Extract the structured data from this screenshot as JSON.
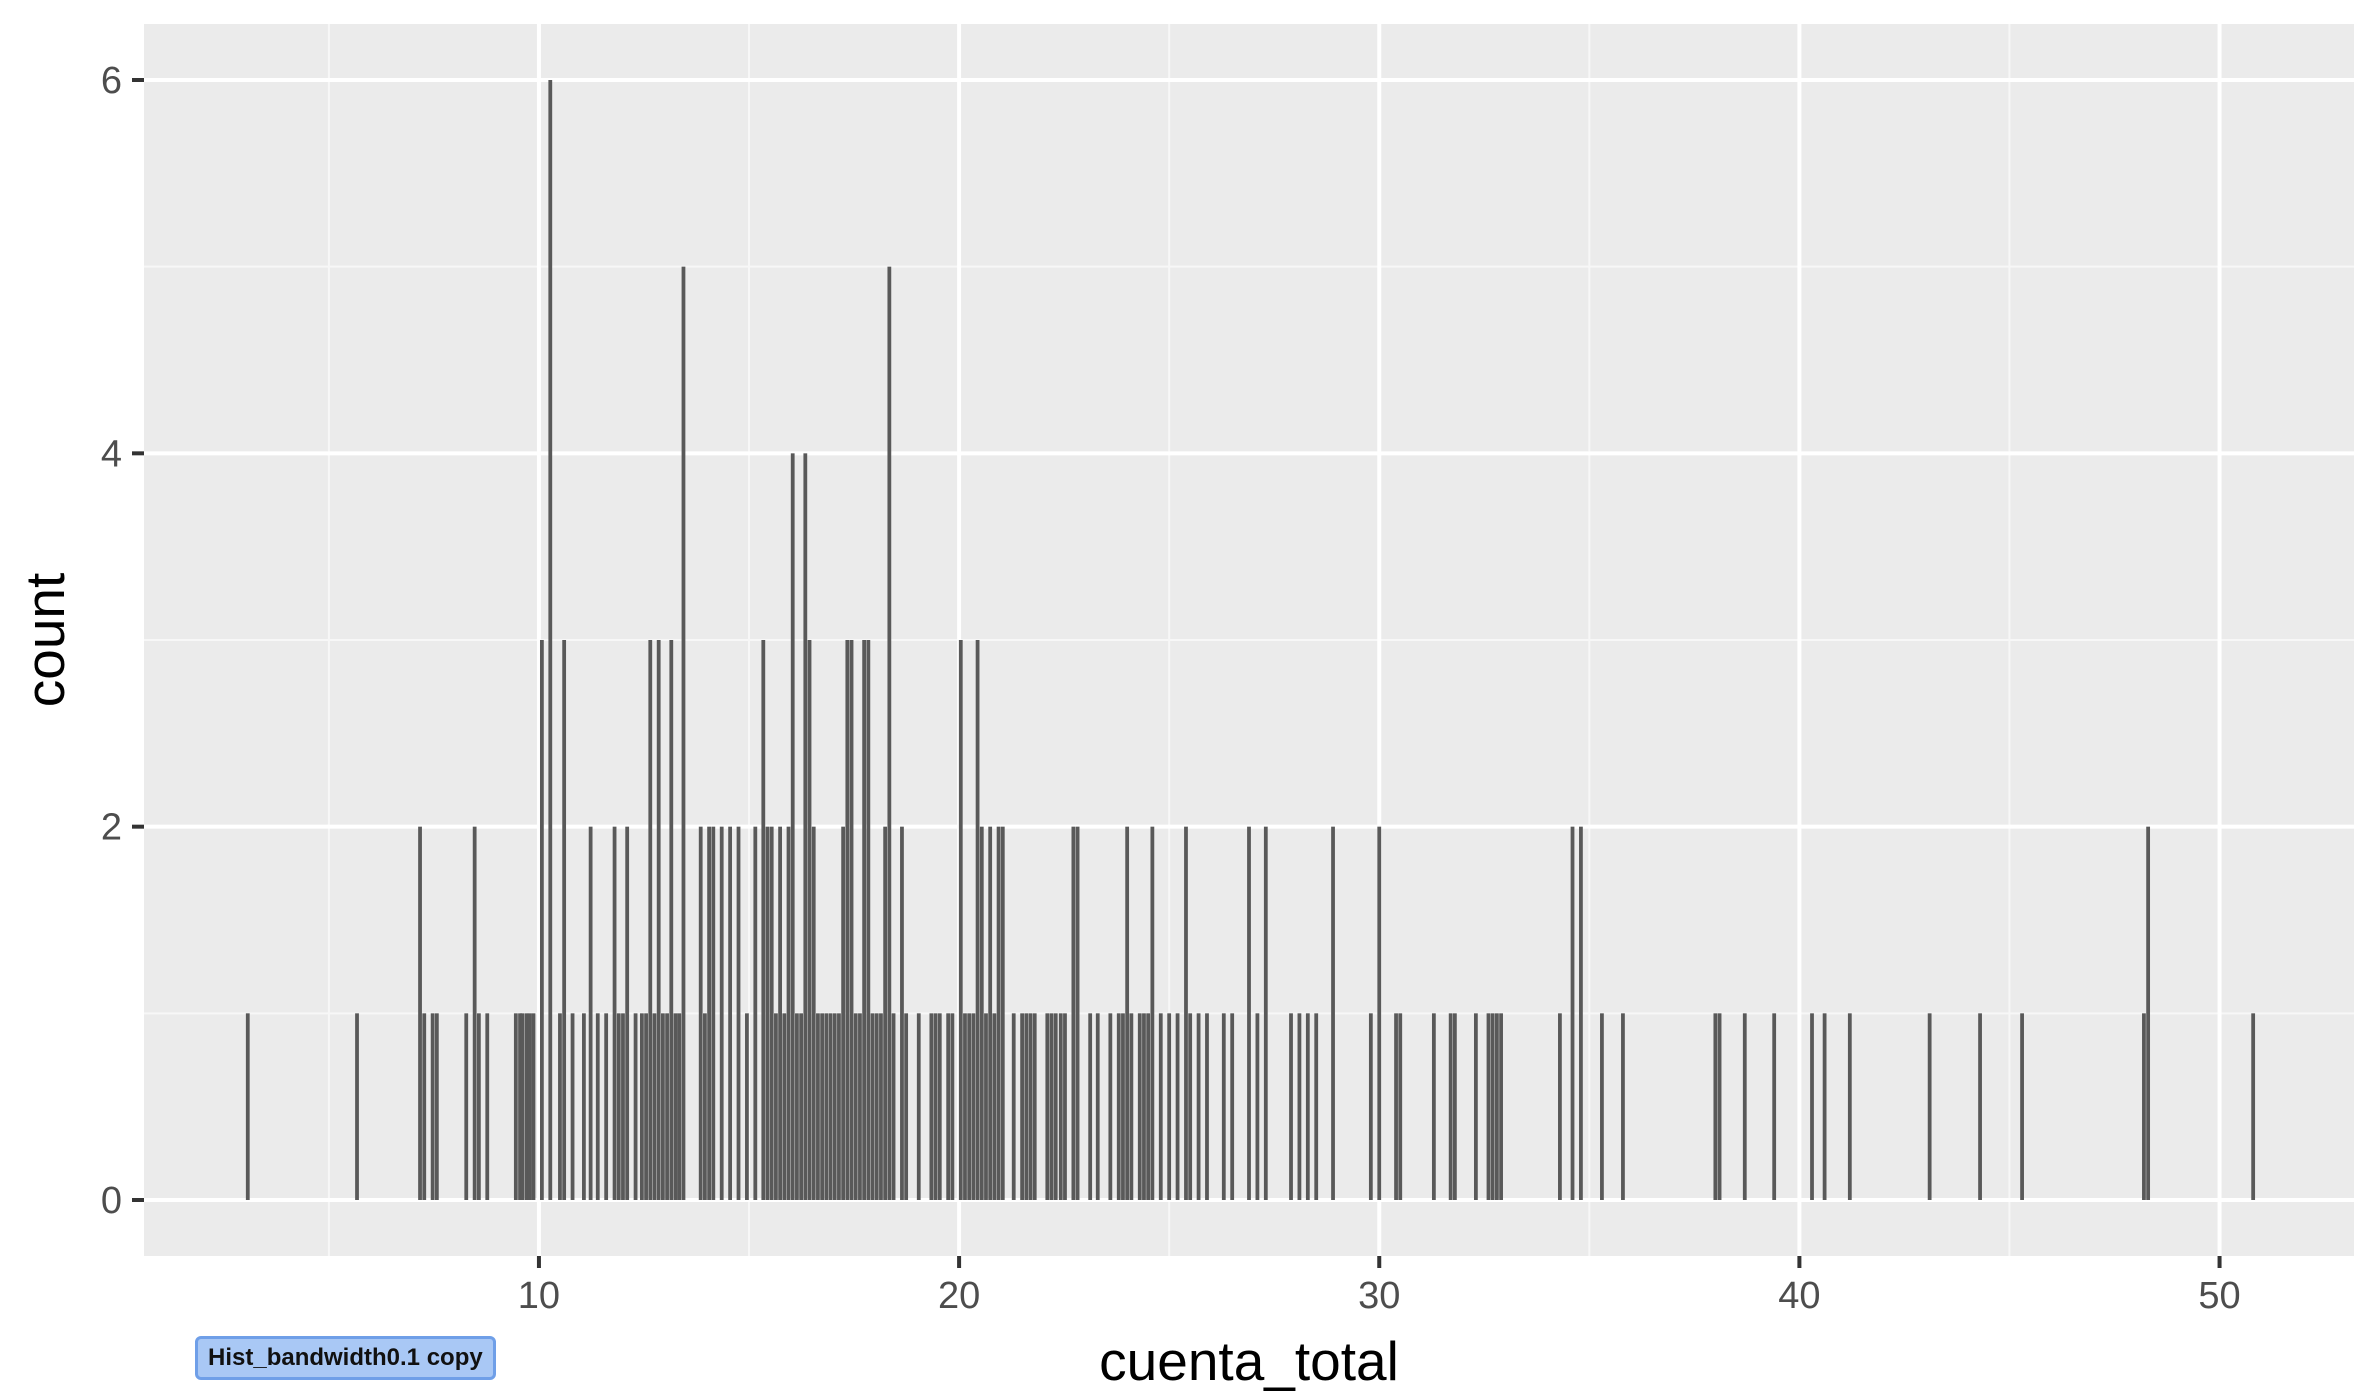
{
  "file_label": "Hist_bandwidth0.1 copy",
  "chart_data": {
    "type": "bar",
    "subtype": "histogram",
    "binwidth": 0.1,
    "title": "",
    "xlabel": "cuenta_total",
    "ylabel": "count",
    "xlim": [
      0.6,
      53.2
    ],
    "ylim": [
      -0.3,
      6.3
    ],
    "x_ticks": [
      10,
      20,
      30,
      40,
      50
    ],
    "x_tick_labels": [
      "10",
      "20",
      "30",
      "40",
      "50"
    ],
    "y_ticks": [
      0,
      2,
      4,
      6
    ],
    "y_tick_labels": [
      "0",
      "2",
      "4",
      "6"
    ],
    "grid": true,
    "colors": {
      "panel_background": "#ebebeb",
      "grid_major": "#ffffff",
      "grid_minor": "#f7f7f7",
      "bar": "#595959"
    },
    "x": [
      3.07,
      5.67,
      7.17,
      7.27,
      7.47,
      7.57,
      8.27,
      8.47,
      8.57,
      8.77,
      9.45,
      9.55,
      9.6,
      9.7,
      9.78,
      9.87,
      10.07,
      10.27,
      10.5,
      10.6,
      10.8,
      11.07,
      11.23,
      11.4,
      11.6,
      11.8,
      11.9,
      12.0,
      12.1,
      12.3,
      12.45,
      12.55,
      12.65,
      12.75,
      12.85,
      12.95,
      13.05,
      13.15,
      13.25,
      13.34,
      13.44,
      13.85,
      13.95,
      14.05,
      14.15,
      14.35,
      14.55,
      14.75,
      14.95,
      15.15,
      15.34,
      15.44,
      15.54,
      15.64,
      15.74,
      15.84,
      15.94,
      16.04,
      16.14,
      16.24,
      16.34,
      16.44,
      16.54,
      16.64,
      16.74,
      16.84,
      16.94,
      17.04,
      17.14,
      17.24,
      17.34,
      17.44,
      17.54,
      17.64,
      17.74,
      17.84,
      17.94,
      18.04,
      18.14,
      18.24,
      18.34,
      18.44,
      18.64,
      18.74,
      19.04,
      19.34,
      19.44,
      19.54,
      19.74,
      19.84,
      20.04,
      20.14,
      20.24,
      20.34,
      20.44,
      20.54,
      20.64,
      20.74,
      20.84,
      20.94,
      21.04,
      21.3,
      21.5,
      21.6,
      21.7,
      21.8,
      22.1,
      22.2,
      22.3,
      22.42,
      22.52,
      22.72,
      22.82,
      23.12,
      23.3,
      23.6,
      23.8,
      23.9,
      24.0,
      24.1,
      24.3,
      24.4,
      24.5,
      24.6,
      24.8,
      25.0,
      25.2,
      25.4,
      25.5,
      25.7,
      25.9,
      26.3,
      26.5,
      26.9,
      27.1,
      27.3,
      27.9,
      28.1,
      28.3,
      28.5,
      28.9,
      29.8,
      30.0,
      30.4,
      30.5,
      31.3,
      31.7,
      31.8,
      32.3,
      32.6,
      32.7,
      32.8,
      32.9,
      34.3,
      34.6,
      34.8,
      35.3,
      35.8,
      38.0,
      38.1,
      38.7,
      39.4,
      40.3,
      40.6,
      41.2,
      43.1,
      44.3,
      45.3,
      48.2,
      48.3,
      50.8
    ],
    "values": [
      1,
      1,
      2,
      1,
      1,
      1,
      1,
      2,
      1,
      1,
      1,
      1,
      1,
      1,
      1,
      1,
      3,
      6,
      1,
      3,
      1,
      1,
      2,
      1,
      1,
      2,
      1,
      1,
      2,
      1,
      1,
      1,
      3,
      1,
      3,
      1,
      1,
      3,
      1,
      1,
      5,
      2,
      1,
      2,
      2,
      2,
      2,
      2,
      1,
      2,
      3,
      2,
      2,
      1,
      2,
      1,
      2,
      4,
      1,
      1,
      4,
      3,
      2,
      1,
      1,
      1,
      1,
      1,
      1,
      2,
      3,
      3,
      1,
      1,
      3,
      3,
      1,
      1,
      1,
      2,
      5,
      1,
      2,
      1,
      1,
      1,
      1,
      1,
      1,
      1,
      3,
      1,
      1,
      1,
      3,
      2,
      1,
      2,
      1,
      2,
      2,
      1,
      1,
      1,
      1,
      1,
      1,
      1,
      1,
      1,
      1,
      2,
      2,
      1,
      1,
      1,
      1,
      1,
      2,
      1,
      1,
      1,
      1,
      2,
      1,
      1,
      1,
      2,
      1,
      1,
      1,
      1,
      1,
      2,
      1,
      2,
      1,
      1,
      1,
      1,
      2,
      1,
      2,
      1,
      1,
      1,
      1,
      1,
      1,
      1,
      1,
      1,
      1,
      1,
      2,
      2,
      1,
      1,
      1,
      1,
      1,
      1,
      1,
      1,
      1,
      1,
      1,
      1,
      1,
      2,
      1
    ]
  }
}
